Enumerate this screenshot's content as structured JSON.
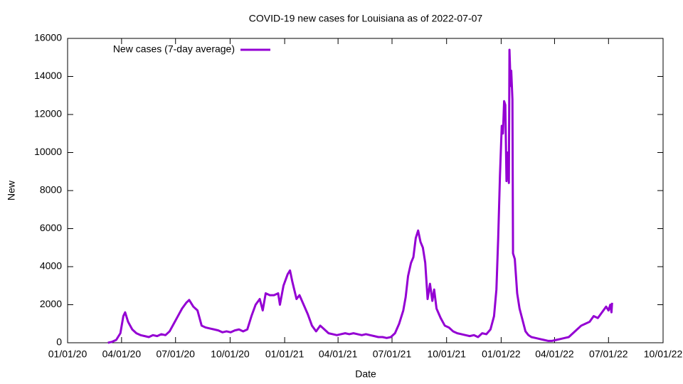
{
  "chart_data": {
    "type": "line",
    "title": "COVID-19 new cases for Louisiana as of 2022-07-07",
    "x_label": "Date",
    "y_label": "New",
    "legend_position": "top-left",
    "xlim": [
      "2020-01-01",
      "2022-10-01"
    ],
    "xticks": [
      {
        "value": "2020-01-01",
        "label": "01/01/20"
      },
      {
        "value": "2020-04-01",
        "label": "04/01/20"
      },
      {
        "value": "2020-07-01",
        "label": "07/01/20"
      },
      {
        "value": "2020-10-01",
        "label": "10/01/20"
      },
      {
        "value": "2021-01-01",
        "label": "01/01/21"
      },
      {
        "value": "2021-04-01",
        "label": "04/01/21"
      },
      {
        "value": "2021-07-01",
        "label": "07/01/21"
      },
      {
        "value": "2021-10-01",
        "label": "10/01/21"
      },
      {
        "value": "2022-01-01",
        "label": "01/01/22"
      },
      {
        "value": "2022-04-01",
        "label": "04/01/22"
      },
      {
        "value": "2022-07-01",
        "label": "07/01/22"
      },
      {
        "value": "2022-10-01",
        "label": "10/01/22"
      }
    ],
    "ylim": [
      0,
      16000
    ],
    "yticks": [
      0,
      2000,
      4000,
      6000,
      8000,
      10000,
      12000,
      14000,
      16000
    ],
    "x": [
      "2020-03-09",
      "2020-03-16",
      "2020-03-23",
      "2020-03-30",
      "2020-04-04",
      "2020-04-07",
      "2020-04-12",
      "2020-04-19",
      "2020-04-26",
      "2020-05-03",
      "2020-05-10",
      "2020-05-17",
      "2020-05-24",
      "2020-05-31",
      "2020-06-07",
      "2020-06-14",
      "2020-06-21",
      "2020-06-28",
      "2020-07-05",
      "2020-07-12",
      "2020-07-19",
      "2020-07-24",
      "2020-07-31",
      "2020-08-07",
      "2020-08-14",
      "2020-08-21",
      "2020-08-28",
      "2020-09-04",
      "2020-09-11",
      "2020-09-18",
      "2020-09-25",
      "2020-10-02",
      "2020-10-09",
      "2020-10-16",
      "2020-10-23",
      "2020-10-30",
      "2020-11-06",
      "2020-11-13",
      "2020-11-20",
      "2020-11-25",
      "2020-11-30",
      "2020-12-07",
      "2020-12-14",
      "2020-12-21",
      "2020-12-24",
      "2020-12-30",
      "2021-01-06",
      "2021-01-10",
      "2021-01-14",
      "2021-01-21",
      "2021-01-26",
      "2021-02-02",
      "2021-02-09",
      "2021-02-16",
      "2021-02-23",
      "2021-03-02",
      "2021-03-09",
      "2021-03-16",
      "2021-03-23",
      "2021-03-30",
      "2021-04-06",
      "2021-04-13",
      "2021-04-20",
      "2021-04-27",
      "2021-05-04",
      "2021-05-11",
      "2021-05-18",
      "2021-05-25",
      "2021-06-01",
      "2021-06-08",
      "2021-06-15",
      "2021-06-22",
      "2021-06-29",
      "2021-07-06",
      "2021-07-13",
      "2021-07-20",
      "2021-07-24",
      "2021-07-28",
      "2021-08-02",
      "2021-08-06",
      "2021-08-10",
      "2021-08-14",
      "2021-08-18",
      "2021-08-22",
      "2021-08-26",
      "2021-08-30",
      "2021-09-03",
      "2021-09-07",
      "2021-09-10",
      "2021-09-14",
      "2021-09-21",
      "2021-09-28",
      "2021-10-05",
      "2021-10-12",
      "2021-10-19",
      "2021-10-26",
      "2021-11-02",
      "2021-11-09",
      "2021-11-16",
      "2021-11-23",
      "2021-11-30",
      "2021-12-07",
      "2021-12-14",
      "2021-12-20",
      "2021-12-24",
      "2021-12-27",
      "2021-12-30",
      "2022-01-02",
      "2022-01-04",
      "2022-01-06",
      "2022-01-08",
      "2022-01-10",
      "2022-01-12",
      "2022-01-14",
      "2022-01-15",
      "2022-01-17",
      "2022-01-18",
      "2022-01-20",
      "2022-01-21",
      "2022-01-24",
      "2022-01-28",
      "2022-02-01",
      "2022-02-06",
      "2022-02-11",
      "2022-02-16",
      "2022-02-21",
      "2022-02-28",
      "2022-03-07",
      "2022-03-14",
      "2022-03-21",
      "2022-03-28",
      "2022-04-04",
      "2022-04-11",
      "2022-04-18",
      "2022-04-25",
      "2022-05-02",
      "2022-05-09",
      "2022-05-16",
      "2022-05-23",
      "2022-05-30",
      "2022-06-06",
      "2022-06-13",
      "2022-06-20",
      "2022-06-27",
      "2022-07-01",
      "2022-07-04",
      "2022-07-06",
      "2022-07-07"
    ],
    "series": [
      {
        "name": "New cases (7-day average)",
        "color": "#9400d3",
        "values": [
          0,
          50,
          150,
          500,
          1400,
          1600,
          1100,
          700,
          500,
          400,
          350,
          300,
          400,
          350,
          450,
          400,
          600,
          1000,
          1400,
          1800,
          2100,
          2250,
          1900,
          1700,
          900,
          800,
          750,
          700,
          650,
          550,
          600,
          550,
          650,
          700,
          600,
          700,
          1400,
          2000,
          2300,
          1700,
          2600,
          2500,
          2500,
          2600,
          2000,
          3000,
          3600,
          3800,
          3200,
          2300,
          2500,
          2000,
          1500,
          900,
          600,
          900,
          700,
          500,
          450,
          400,
          450,
          500,
          450,
          500,
          450,
          400,
          450,
          400,
          350,
          300,
          300,
          250,
          300,
          500,
          1000,
          1700,
          2400,
          3500,
          4200,
          4500,
          5500,
          5900,
          5300,
          5000,
          4200,
          2300,
          3100,
          2200,
          2800,
          1800,
          1300,
          900,
          800,
          600,
          500,
          450,
          400,
          350,
          400,
          300,
          500,
          450,
          700,
          1400,
          2800,
          5500,
          8800,
          11400,
          11000,
          12700,
          12500,
          8500,
          10000,
          8400,
          15400,
          13500,
          14300,
          12800,
          4700,
          4400,
          2600,
          1800,
          1200,
          600,
          400,
          300,
          250,
          200,
          150,
          100,
          100,
          150,
          200,
          250,
          300,
          500,
          700,
          900,
          1000,
          1100,
          1400,
          1300,
          1600,
          1900,
          1700,
          2000,
          1600,
          2100
        ]
      }
    ]
  }
}
